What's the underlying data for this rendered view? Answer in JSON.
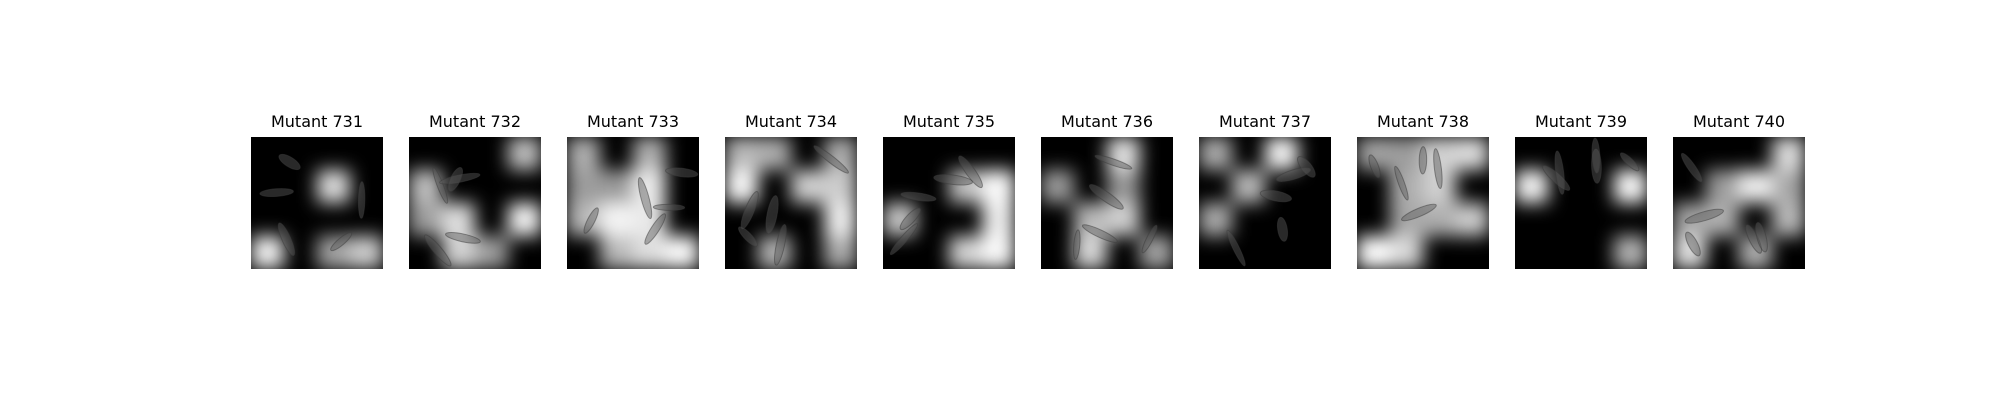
{
  "figure": {
    "panels": [
      {
        "title": "Mutant 731",
        "seed": 731
      },
      {
        "title": "Mutant 732",
        "seed": 732
      },
      {
        "title": "Mutant 733",
        "seed": 733
      },
      {
        "title": "Mutant 734",
        "seed": 734
      },
      {
        "title": "Mutant 735",
        "seed": 735
      },
      {
        "title": "Mutant 736",
        "seed": 736
      },
      {
        "title": "Mutant 737",
        "seed": 737
      },
      {
        "title": "Mutant 738",
        "seed": 738
      },
      {
        "title": "Mutant 739",
        "seed": 739
      },
      {
        "title": "Mutant 740",
        "seed": 740
      }
    ]
  }
}
